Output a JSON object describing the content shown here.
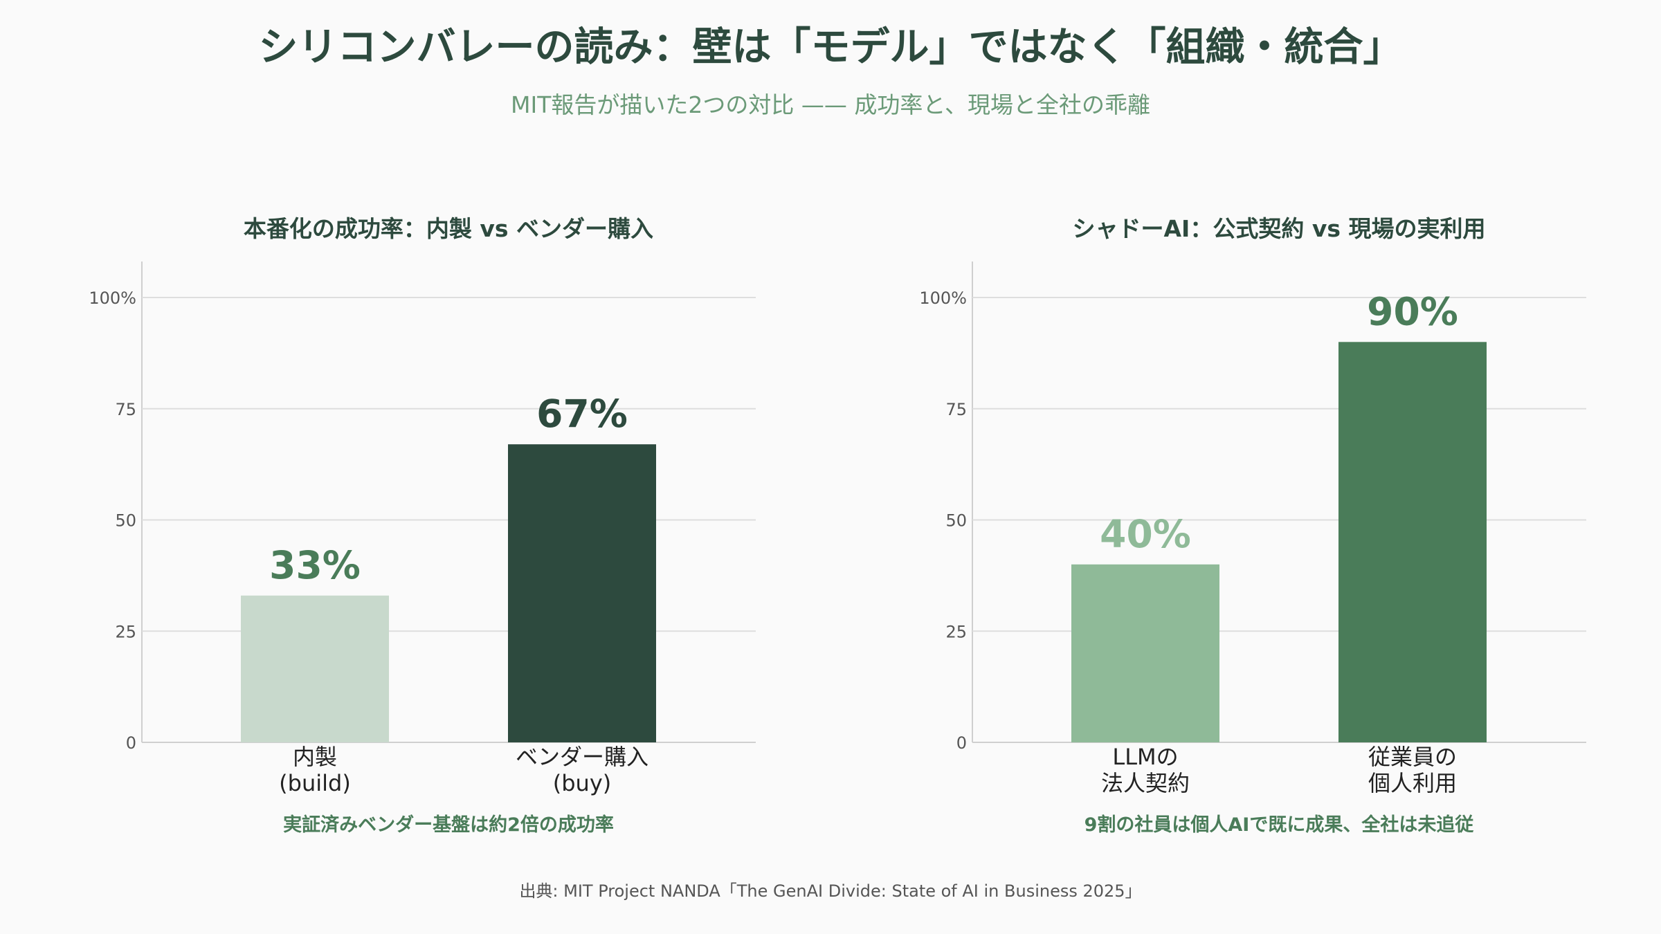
{
  "title": "シリコンバレーの読み：壁は「モデル」ではなく「組織・統合」",
  "subtitle": "MIT報告が描いた2つの対比 —— 成功率と、現場と全社の乖離",
  "source": "出典: MIT Project NANDA「The GenAI Divide: State of AI in Business 2025」",
  "chart_data": [
    {
      "type": "bar",
      "title": "本番化の成功率：内製 vs ベンダー購入",
      "categories": [
        [
          "内製",
          "(build)"
        ],
        [
          "ベンダー購入",
          "(buy)"
        ]
      ],
      "values": [
        33,
        67
      ],
      "value_labels": [
        "33%",
        "67%"
      ],
      "colors": [
        "#c8d9cc",
        "#2d4a3e"
      ],
      "label_colors": [
        "#4a7c59",
        "#2d4a3e"
      ],
      "ylim": [
        0,
        100
      ],
      "yticks": [
        0,
        25,
        50,
        75,
        100
      ],
      "ytick_labels": [
        "0",
        "25",
        "50",
        "75",
        "100%"
      ],
      "grid": true,
      "note": "実証済みベンダー基盤は約2倍の成功率"
    },
    {
      "type": "bar",
      "title": "シャドーAI：公式契約 vs 現場の実利用",
      "categories": [
        [
          "LLMの",
          "法人契約"
        ],
        [
          "従業員の",
          "個人利用"
        ]
      ],
      "values": [
        40,
        90
      ],
      "value_labels": [
        "40%",
        "90%"
      ],
      "colors": [
        "#8fba98",
        "#4a7c59"
      ],
      "label_colors": [
        "#8fba98",
        "#4a7c59"
      ],
      "ylim": [
        0,
        100
      ],
      "yticks": [
        0,
        25,
        50,
        75,
        100
      ],
      "ytick_labels": [
        "0",
        "25",
        "50",
        "75",
        "100%"
      ],
      "grid": true,
      "note": "9割の社員は個人AIで既に成果、全社は未追従"
    }
  ]
}
